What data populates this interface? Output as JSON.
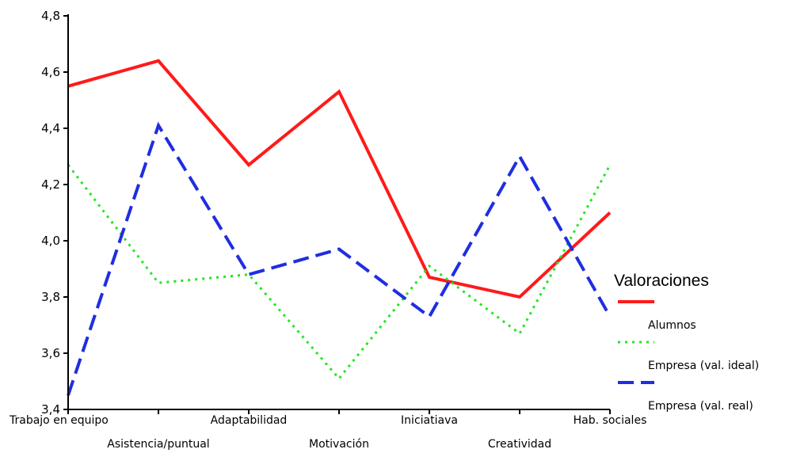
{
  "chart_data": {
    "type": "line",
    "categories": [
      "Trabajo en equipo",
      "Asistencia/puntual",
      "Adaptabilidad",
      "Motivación",
      "Iniciatiava",
      "Creatividad",
      "Hab. sociales"
    ],
    "yticks": [
      "3,4",
      "3,6",
      "3,8",
      "4,0",
      "4,2",
      "4,4",
      "4,6",
      "4,8"
    ],
    "ylim": [
      3.4,
      4.8
    ],
    "grid": false,
    "legend_position": "right",
    "legend_title": "Valoraciones",
    "series": [
      {
        "name": "Alumnos",
        "color": "#ff1a1a",
        "dash": "solid",
        "values": [
          4.55,
          4.64,
          4.27,
          4.53,
          3.87,
          3.8,
          4.1
        ]
      },
      {
        "name": "Empresa (val. ideal)",
        "color": "#22e622",
        "dash": "dotted",
        "values": [
          4.27,
          3.85,
          3.88,
          3.51,
          3.91,
          3.67,
          4.27
        ]
      },
      {
        "name": "Empresa (val. real)",
        "color": "#1f2ee0",
        "dash": "dashed",
        "values": [
          3.45,
          4.41,
          3.88,
          3.97,
          3.73,
          4.3,
          3.73
        ]
      }
    ]
  }
}
